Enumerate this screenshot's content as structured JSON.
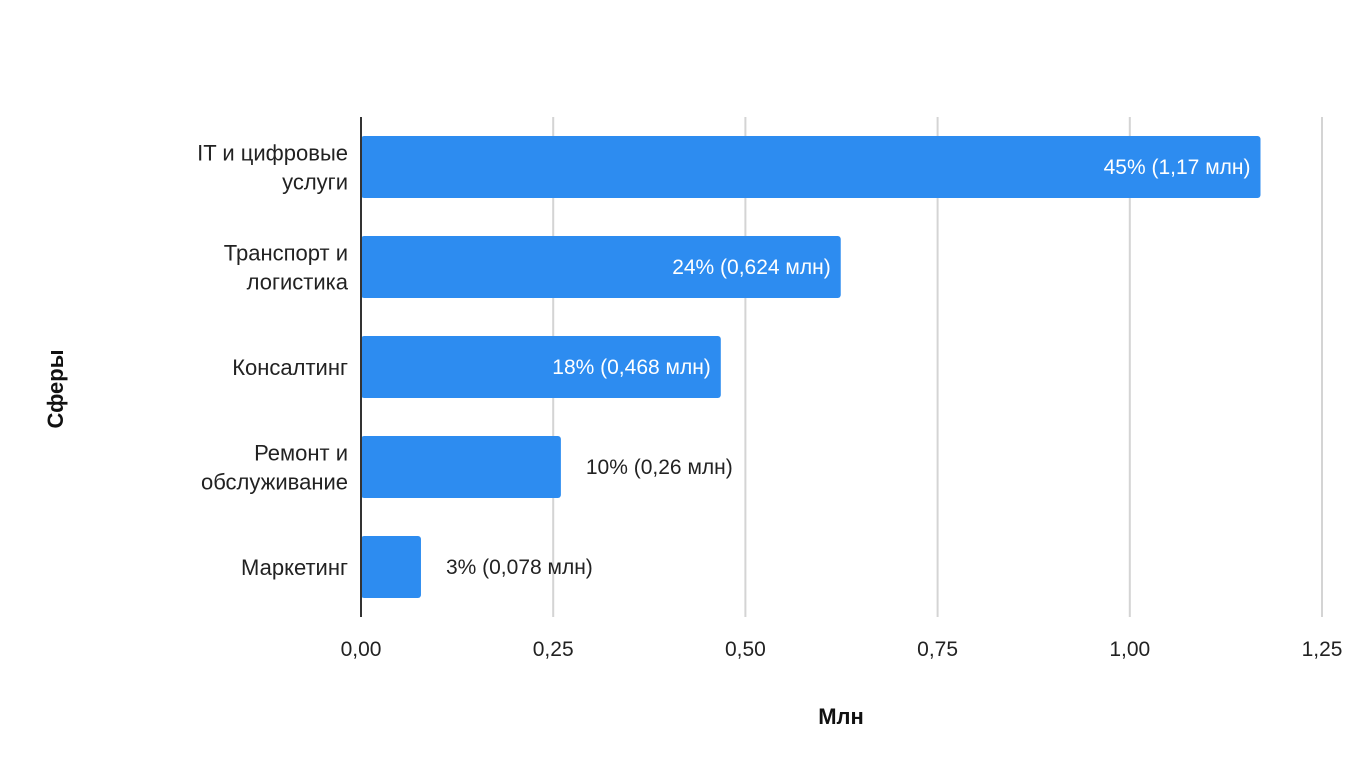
{
  "chart_data": {
    "type": "bar",
    "orientation": "horizontal",
    "ylabel": "Сферы",
    "xlabel": "Млн",
    "xlim": [
      0,
      1.25
    ],
    "ticks": [
      0,
      0.25,
      0.5,
      0.75,
      1.0,
      1.25
    ],
    "tick_labels": [
      "0,00",
      "0,25",
      "0,50",
      "0,75",
      "1,00",
      "1,25"
    ],
    "grid": true,
    "bar_color": "#2d8cf0",
    "categories": [
      [
        "IT и цифровые",
        "услуги"
      ],
      [
        "Транспорт и",
        "логистика"
      ],
      [
        "Консалтинг"
      ],
      [
        "Ремонт и",
        "обслуживание"
      ],
      [
        "Маркетинг"
      ]
    ],
    "values": [
      1.17,
      0.624,
      0.468,
      0.26,
      0.078
    ],
    "data_labels": [
      "45% (1,17 млн)",
      "24% (0,624 млн)",
      "18% (0,468 млн)",
      "10% (0,26 млн)",
      "3% (0,078 млн)"
    ]
  }
}
